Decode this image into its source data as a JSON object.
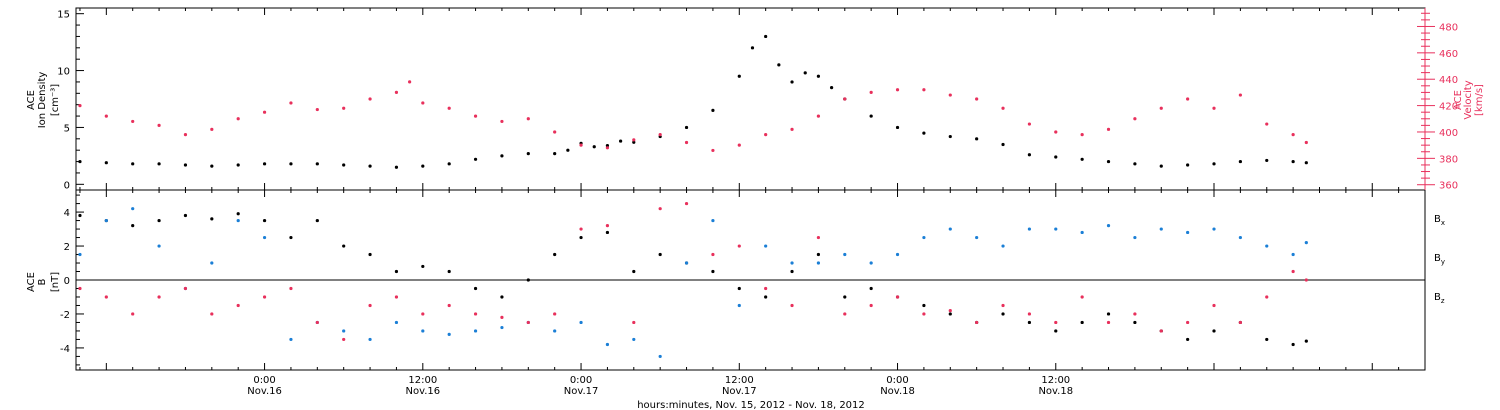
{
  "chart_data": [
    {
      "type": "scatter",
      "panel": "plasma",
      "ylabel_line1": "ACE",
      "ylabel_line2": "Ion Density",
      "ylabel_units": "[cm⁻³]",
      "ylim": [
        -0.5,
        15.5
      ],
      "yticks": [
        "0",
        "5",
        "10",
        "15"
      ],
      "y2label_line1": "ACE",
      "y2label_line2": "Velocity",
      "y2label_units": "[km/s]",
      "y2lim": [
        356,
        494
      ],
      "y2ticks": [
        "360",
        "380",
        "400",
        "420",
        "440",
        "460",
        "480"
      ],
      "series": [
        {
          "axis": "left",
          "color": "#000000",
          "x": [
            -14,
            -12,
            -10,
            -8,
            -6,
            -4,
            -2,
            0,
            2,
            4,
            6,
            8,
            10,
            12,
            14,
            16,
            18,
            20,
            22,
            23,
            24,
            25,
            26,
            27,
            28,
            30,
            32,
            34,
            36,
            37,
            38,
            39,
            40,
            41,
            42,
            43,
            44,
            46,
            48,
            50,
            52,
            54,
            56,
            58,
            60,
            62,
            64,
            66,
            68,
            70,
            72,
            74,
            76,
            78,
            79
          ],
          "values": [
            2.0,
            1.9,
            1.8,
            1.8,
            1.7,
            1.6,
            1.7,
            1.8,
            1.8,
            1.8,
            1.7,
            1.6,
            1.5,
            1.6,
            1.8,
            2.2,
            2.5,
            2.7,
            2.7,
            3.0,
            3.6,
            3.3,
            3.4,
            3.8,
            3.7,
            4.2,
            5.0,
            6.5,
            9.5,
            12.0,
            13.0,
            10.5,
            9.0,
            9.8,
            9.5,
            8.5,
            7.5,
            6.0,
            5.0,
            4.5,
            4.2,
            4.0,
            3.5,
            2.6,
            2.4,
            2.2,
            2.0,
            1.8,
            1.6,
            1.7,
            1.8,
            2.0,
            2.1,
            2.0,
            1.9
          ]
        },
        {
          "axis": "right",
          "color": "#e8305c",
          "x": [
            -14,
            -12,
            -10,
            -8,
            -6,
            -4,
            -2,
            0,
            2,
            4,
            6,
            8,
            10,
            11,
            12,
            14,
            16,
            18,
            20,
            22,
            24,
            26,
            28,
            30,
            32,
            34,
            36,
            38,
            40,
            42,
            44,
            46,
            48,
            50,
            52,
            54,
            56,
            58,
            60,
            62,
            64,
            66,
            68,
            70,
            72,
            74,
            76,
            78,
            79
          ],
          "values": [
            420,
            412,
            408,
            405,
            398,
            402,
            410,
            415,
            422,
            417,
            418,
            425,
            430,
            438,
            422,
            418,
            412,
            408,
            410,
            400,
            390,
            388,
            394,
            398,
            392,
            386,
            390,
            398,
            402,
            412,
            425,
            430,
            432,
            432,
            428,
            425,
            418,
            406,
            400,
            398,
            402,
            410,
            418,
            425,
            418,
            428,
            406,
            398,
            392
          ]
        }
      ]
    },
    {
      "type": "scatter",
      "panel": "magnetic-field",
      "xlabel": "hours:minutes, Nov. 15, 2012 - Nov. 18, 2012",
      "ylabel_line1": "ACE",
      "ylabel_line2": "B",
      "ylabel_units": "[nT]",
      "ylim": [
        -5.3,
        5.3
      ],
      "yticks": [
        "-4",
        "-2",
        "0",
        "2",
        "4"
      ],
      "xlim": [
        -14.3,
        88
      ],
      "xticks": [
        {
          "x": 0,
          "time": "0:00",
          "date": "Nov.16"
        },
        {
          "x": 12,
          "time": "12:00",
          "date": "Nov.16"
        },
        {
          "x": 24,
          "time": "0:00",
          "date": "Nov.17"
        },
        {
          "x": 36,
          "time": "12:00",
          "date": "Nov.17"
        },
        {
          "x": 48,
          "time": "0:00",
          "date": "Nov.18"
        },
        {
          "x": 60,
          "time": "12:00",
          "date": "Nov.18"
        }
      ],
      "series": [
        {
          "name": "B",
          "subscript": "x",
          "color": "#000000",
          "x": [
            -14,
            -12,
            -10,
            -8,
            -6,
            -4,
            -2,
            0,
            2,
            4,
            6,
            8,
            10,
            12,
            14,
            16,
            18,
            20,
            22,
            24,
            26,
            28,
            30,
            32,
            34,
            36,
            38,
            40,
            42,
            44,
            46,
            48,
            50,
            52,
            54,
            56,
            58,
            60,
            62,
            64,
            66,
            68,
            70,
            72,
            74,
            76,
            78,
            79
          ],
          "values": [
            3.8,
            3.5,
            3.2,
            3.5,
            3.8,
            3.6,
            3.9,
            3.5,
            2.5,
            3.5,
            2.0,
            1.5,
            0.5,
            0.8,
            0.5,
            -0.5,
            -1.0,
            0.0,
            1.5,
            2.5,
            2.8,
            0.5,
            1.5,
            1.0,
            0.5,
            -0.5,
            -1.0,
            0.5,
            1.5,
            -1.0,
            -0.5,
            -1.0,
            -1.5,
            -2.0,
            -2.5,
            -2.0,
            -2.5,
            -3.0,
            -2.5,
            -2.0,
            -2.5,
            -3.0,
            -3.5,
            -3.0,
            -2.5,
            -3.5,
            -3.8,
            -3.6
          ]
        },
        {
          "name": "B",
          "subscript": "y",
          "color": "#1b7fd6",
          "x": [
            -14,
            -12,
            -10,
            -8,
            -6,
            -4,
            -2,
            0,
            2,
            4,
            6,
            8,
            10,
            12,
            14,
            16,
            18,
            20,
            22,
            24,
            26,
            28,
            30,
            32,
            34,
            36,
            38,
            40,
            42,
            44,
            46,
            48,
            50,
            52,
            54,
            56,
            58,
            60,
            62,
            64,
            66,
            68,
            70,
            72,
            74,
            76,
            78,
            79
          ],
          "values": [
            1.5,
            3.5,
            4.2,
            2.0,
            -0.5,
            1.0,
            3.5,
            2.5,
            -3.5,
            -2.5,
            -3.0,
            -3.5,
            -2.5,
            -3.0,
            -3.2,
            -3.0,
            -2.8,
            -2.5,
            -3.0,
            -2.5,
            -3.8,
            -3.5,
            -4.5,
            1.0,
            3.5,
            -1.5,
            2.0,
            1.0,
            1.0,
            1.5,
            1.0,
            1.5,
            2.5,
            3.0,
            2.5,
            2.0,
            3.0,
            3.0,
            2.8,
            3.2,
            2.5,
            3.0,
            2.8,
            3.0,
            2.5,
            2.0,
            1.5,
            2.2
          ]
        },
        {
          "name": "B",
          "subscript": "z",
          "color": "#e8305c",
          "x": [
            -14,
            -12,
            -10,
            -8,
            -6,
            -4,
            -2,
            0,
            2,
            4,
            6,
            8,
            10,
            12,
            14,
            16,
            18,
            20,
            22,
            24,
            26,
            28,
            30,
            32,
            34,
            36,
            38,
            40,
            42,
            44,
            46,
            48,
            50,
            52,
            54,
            56,
            58,
            60,
            62,
            64,
            66,
            68,
            70,
            72,
            74,
            76,
            78,
            79
          ],
          "values": [
            -0.5,
            -1.0,
            -2.0,
            -1.0,
            -0.5,
            -2.0,
            -1.5,
            -1.0,
            -0.5,
            -2.5,
            -3.5,
            -1.5,
            -1.0,
            -2.0,
            -1.5,
            -2.0,
            -2.2,
            -2.5,
            -2.0,
            3.0,
            3.2,
            -2.5,
            4.2,
            4.5,
            1.5,
            2.0,
            -0.5,
            -1.5,
            2.5,
            -2.0,
            -1.5,
            -1.0,
            -2.0,
            -1.8,
            -2.5,
            -1.5,
            -2.0,
            -2.5,
            -1.0,
            -2.5,
            -2.0,
            -3.0,
            -2.5,
            -1.5,
            -2.5,
            -1.0,
            0.5,
            0.0
          ]
        }
      ]
    }
  ]
}
